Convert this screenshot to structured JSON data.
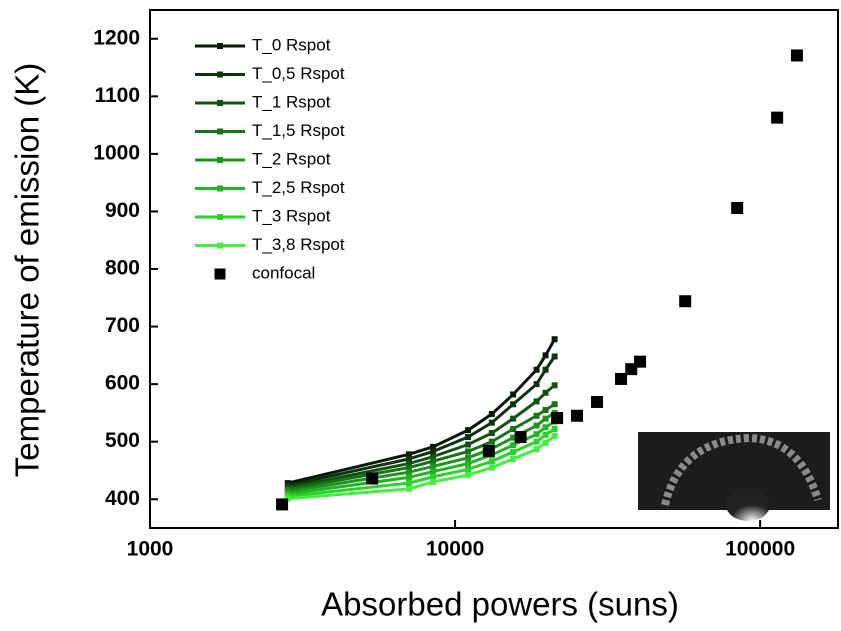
{
  "chart_data": {
    "type": "line",
    "x_label": "Absorbed powers (suns)",
    "y_label": "Temperature of emission (K)",
    "x_log": true,
    "xlim": [
      1000,
      180000
    ],
    "xticks": [
      1000,
      10000,
      100000
    ],
    "ylim": [
      350,
      1250
    ],
    "yticks": [
      400,
      500,
      600,
      700,
      800,
      900,
      1000,
      1100,
      1200
    ],
    "legend": "upper left",
    "series": [
      {
        "name": "T_0 Rspot",
        "color": "#0a1a0a",
        "x": [
          2830,
          7060,
          8470,
          11030,
          13200,
          15500,
          18500,
          19800,
          21200
        ],
        "values": [
          428,
          478,
          491,
          520,
          548,
          582,
          625,
          650,
          678
        ]
      },
      {
        "name": "T_0,5 Rspot",
        "color": "#0f330f",
        "x": [
          2830,
          7060,
          8470,
          11030,
          13200,
          15500,
          18500,
          19800,
          21200
        ],
        "values": [
          424,
          470,
          483,
          508,
          533,
          565,
          600,
          625,
          648
        ]
      },
      {
        "name": "T_1 Rspot",
        "color": "#145214",
        "x": [
          2830,
          7060,
          8470,
          11030,
          13200,
          15500,
          18500,
          19800,
          21200
        ],
        "values": [
          420,
          462,
          474,
          495,
          515,
          540,
          570,
          585,
          598
        ]
      },
      {
        "name": "T_1,5 Rspot",
        "color": "#187318",
        "x": [
          2830,
          7060,
          8470,
          11030,
          13200,
          15500,
          18500,
          19800,
          21200
        ],
        "values": [
          417,
          455,
          466,
          483,
          500,
          522,
          545,
          555,
          565
        ]
      },
      {
        "name": "T_2 Rspot",
        "color": "#1d941d",
        "x": [
          2830,
          7060,
          8470,
          11030,
          13200,
          15500,
          18500,
          19800,
          21200
        ],
        "values": [
          413,
          447,
          457,
          472,
          488,
          507,
          528,
          540,
          550
        ]
      },
      {
        "name": "T_2,5 Rspot",
        "color": "#22b422",
        "x": [
          2830,
          7060,
          8470,
          11030,
          13200,
          15500,
          18500,
          19800,
          21200
        ],
        "values": [
          409,
          438,
          448,
          462,
          477,
          494,
          513,
          525,
          535
        ]
      },
      {
        "name": "T_3 Rspot",
        "color": "#2ad22a",
        "x": [
          2830,
          7060,
          8470,
          11030,
          13200,
          15500,
          18500,
          19800,
          21200
        ],
        "values": [
          405,
          428,
          439,
          452,
          466,
          482,
          500,
          512,
          522
        ]
      },
      {
        "name": "T_3,8 Rspot",
        "color": "#44ee44",
        "x": [
          2830,
          7060,
          8470,
          11030,
          13200,
          15500,
          18500,
          19800,
          21200
        ],
        "values": [
          401,
          418,
          430,
          442,
          455,
          470,
          487,
          498,
          510
        ]
      },
      {
        "name": "confocal",
        "type": "scatter",
        "color": "#000000",
        "x": [
          2710,
          5350,
          12900,
          16400,
          21600,
          25100,
          29200,
          35000,
          37800,
          40400,
          56800,
          84100,
          113700,
          132000
        ],
        "values": [
          391,
          436,
          484,
          508,
          541,
          545,
          569,
          609,
          626,
          639,
          744,
          906,
          1063,
          1171
        ]
      }
    ]
  }
}
